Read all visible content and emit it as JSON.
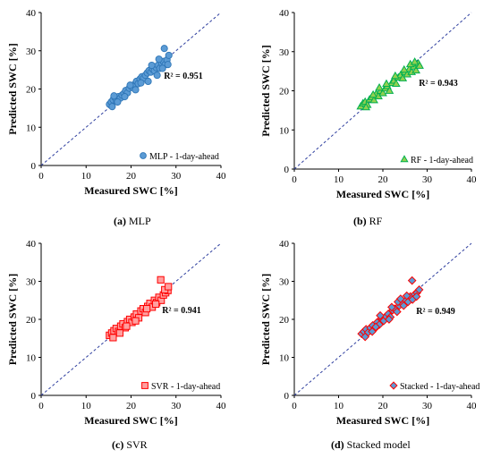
{
  "chart_data": [
    {
      "type": "scatter",
      "panel_label": "(a)",
      "panel_name": "MLP",
      "xlabel": "Measured SWC [%]",
      "ylabel": "Predicted SWC [%]",
      "xlim": [
        0,
        40
      ],
      "ylim": [
        0,
        40
      ],
      "xticks": [
        0,
        10,
        20,
        30,
        40
      ],
      "yticks": [
        0,
        10,
        20,
        30,
        40
      ],
      "annotation": "R² = 0.951",
      "legend": "MLP - 1-day-ahead",
      "legend_position": "bottom-right",
      "marker": "circle",
      "reference_line": "1:1 dashed",
      "series": [
        {
          "name": "MLP - 1-day-ahead",
          "color": "#5b9bd5",
          "edge": "#2e75b6",
          "x": [
            15.2,
            15.6,
            16.0,
            16.4,
            16.8,
            17.2,
            17.6,
            18.0,
            18.4,
            18.8,
            19.2,
            19.6,
            20.0,
            20.4,
            20.8,
            21.2,
            21.6,
            22.0,
            22.4,
            22.8,
            23.2,
            23.6,
            24.0,
            24.4,
            24.8,
            25.2,
            25.6,
            26.0,
            26.4,
            26.8,
            27.2,
            27.6,
            28.0,
            28.4,
            16.2,
            17.0,
            18.6,
            21.0,
            23.8,
            25.8,
            27.0,
            26.2,
            28.2,
            27.4,
            24.6,
            22.2,
            19.8,
            15.8
          ],
          "y": [
            16.0,
            16.6,
            17.2,
            17.8,
            17.0,
            18.0,
            17.6,
            18.4,
            18.8,
            19.6,
            19.0,
            20.2,
            20.8,
            20.4,
            21.2,
            22.0,
            21.4,
            22.6,
            23.2,
            22.8,
            23.6,
            24.2,
            24.8,
            24.4,
            25.2,
            24.8,
            25.6,
            26.2,
            25.4,
            26.8,
            27.2,
            26.4,
            27.6,
            28.8,
            18.2,
            16.6,
            18.0,
            19.8,
            22.0,
            23.6,
            25.4,
            27.8,
            26.4,
            30.6,
            26.2,
            21.6,
            21.0,
            15.4
          ]
        }
      ]
    },
    {
      "type": "scatter",
      "panel_label": "(b)",
      "panel_name": "RF",
      "xlabel": "Measured SWC [%]",
      "ylabel": "Predicted SWC [%]",
      "xlim": [
        0,
        40
      ],
      "ylim": [
        0,
        40
      ],
      "xticks": [
        0,
        10,
        20,
        30,
        40
      ],
      "yticks": [
        0,
        10,
        20,
        30,
        40
      ],
      "annotation": "R² = 0.943",
      "legend": "RF - 1-day-ahead",
      "legend_position": "bottom-right",
      "marker": "triangle",
      "reference_line": "1:1 dashed",
      "series": [
        {
          "name": "RF - 1-day-ahead",
          "color": "#92d050",
          "edge": "#00b050",
          "x": [
            15.0,
            15.5,
            16.0,
            16.5,
            17.0,
            17.5,
            18.0,
            18.5,
            19.0,
            19.5,
            20.0,
            20.5,
            21.0,
            21.5,
            22.0,
            22.5,
            23.0,
            23.5,
            24.0,
            24.5,
            25.0,
            25.5,
            26.0,
            26.5,
            27.0,
            27.5,
            28.0,
            28.3,
            16.2,
            17.8,
            19.2,
            20.8,
            22.8,
            24.8,
            26.2,
            27.2
          ],
          "y": [
            16.0,
            16.8,
            17.2,
            16.4,
            17.8,
            18.4,
            17.6,
            19.2,
            18.6,
            20.0,
            19.4,
            20.6,
            21.2,
            20.0,
            22.0,
            22.6,
            21.8,
            23.4,
            24.0,
            23.2,
            24.8,
            24.2,
            25.6,
            24.8,
            26.2,
            25.2,
            27.0,
            26.4,
            15.8,
            19.0,
            20.8,
            21.8,
            23.8,
            25.4,
            26.8,
            27.4
          ]
        }
      ]
    },
    {
      "type": "scatter",
      "panel_label": "(c)",
      "panel_name": "SVR",
      "xlabel": "Measured SWC [%]",
      "ylabel": "Predicted SWC [%]",
      "xlim": [
        0,
        40
      ],
      "ylim": [
        0,
        40
      ],
      "xticks": [
        0,
        10,
        20,
        30,
        40
      ],
      "yticks": [
        0,
        10,
        20,
        30,
        40
      ],
      "annotation": "R² = 0.941",
      "legend": "SVR - 1-day-ahead",
      "legend_position": "bottom-right",
      "marker": "square",
      "reference_line": "1:1 dashed",
      "series": [
        {
          "name": "SVR - 1-day-ahead",
          "color": "#ff9f9f",
          "edge": "#ff0000",
          "x": [
            15.2,
            15.7,
            16.2,
            16.7,
            17.2,
            17.7,
            18.2,
            18.7,
            19.2,
            19.7,
            20.2,
            20.7,
            21.2,
            21.7,
            22.2,
            22.7,
            23.2,
            23.7,
            24.2,
            24.7,
            25.2,
            25.7,
            26.2,
            26.7,
            27.2,
            27.7,
            28.2,
            16.0,
            17.5,
            19.0,
            21.0,
            23.5,
            25.5,
            26.6,
            27.5,
            28.3
          ],
          "y": [
            15.8,
            16.4,
            17.0,
            17.6,
            16.8,
            18.2,
            18.8,
            17.8,
            19.4,
            20.0,
            19.2,
            20.6,
            21.4,
            20.4,
            22.2,
            22.8,
            21.8,
            23.4,
            24.2,
            23.2,
            25.0,
            24.4,
            25.8,
            25.0,
            26.4,
            27.0,
            27.6,
            15.2,
            16.4,
            18.2,
            19.6,
            22.8,
            24.0,
            30.4,
            27.8,
            28.6
          ]
        }
      ]
    },
    {
      "type": "scatter",
      "panel_label": "(d)",
      "panel_name": "Stacked model",
      "xlabel": "Measured SWC [%]",
      "ylabel": "Predicted SWC [%]",
      "xlim": [
        0,
        40
      ],
      "ylim": [
        0,
        40
      ],
      "xticks": [
        0,
        10,
        20,
        30,
        40
      ],
      "yticks": [
        0,
        10,
        20,
        30,
        40
      ],
      "annotation": "R² = 0.949",
      "legend": "Stacked - 1-day-ahead",
      "legend_position": "bottom-right",
      "marker": "diamond",
      "reference_line": "1:1 dashed",
      "series": [
        {
          "name": "Stacked - 1-day-ahead",
          "color": "#5b9bd5",
          "edge": "#ff0000",
          "x": [
            15.2,
            15.7,
            16.2,
            16.7,
            17.2,
            17.7,
            18.2,
            18.7,
            19.2,
            19.7,
            20.2,
            20.7,
            21.2,
            21.7,
            22.2,
            22.7,
            23.2,
            23.7,
            24.2,
            24.7,
            25.2,
            25.7,
            26.2,
            26.7,
            27.2,
            27.7,
            28.2,
            16.0,
            17.6,
            19.4,
            21.4,
            23.4,
            25.4,
            26.6,
            27.6,
            24.0,
            22.0,
            18.4
          ],
          "y": [
            16.2,
            16.8,
            17.4,
            16.6,
            17.8,
            18.4,
            17.6,
            19.2,
            18.6,
            20.2,
            19.6,
            20.8,
            21.4,
            20.6,
            22.4,
            22.8,
            22.0,
            23.6,
            24.4,
            23.6,
            25.0,
            24.6,
            26.0,
            25.2,
            26.6,
            27.0,
            27.8,
            15.4,
            16.8,
            21.0,
            20.0,
            24.6,
            26.2,
            30.2,
            26.0,
            25.4,
            23.2,
            18.0
          ]
        }
      ]
    }
  ],
  "captions": [
    {
      "label": "(a)",
      "name": "MLP"
    },
    {
      "label": "(b)",
      "name": "RF"
    },
    {
      "label": "(c)",
      "name": "SVR"
    },
    {
      "label": "(d)",
      "name": "Stacked model"
    }
  ]
}
